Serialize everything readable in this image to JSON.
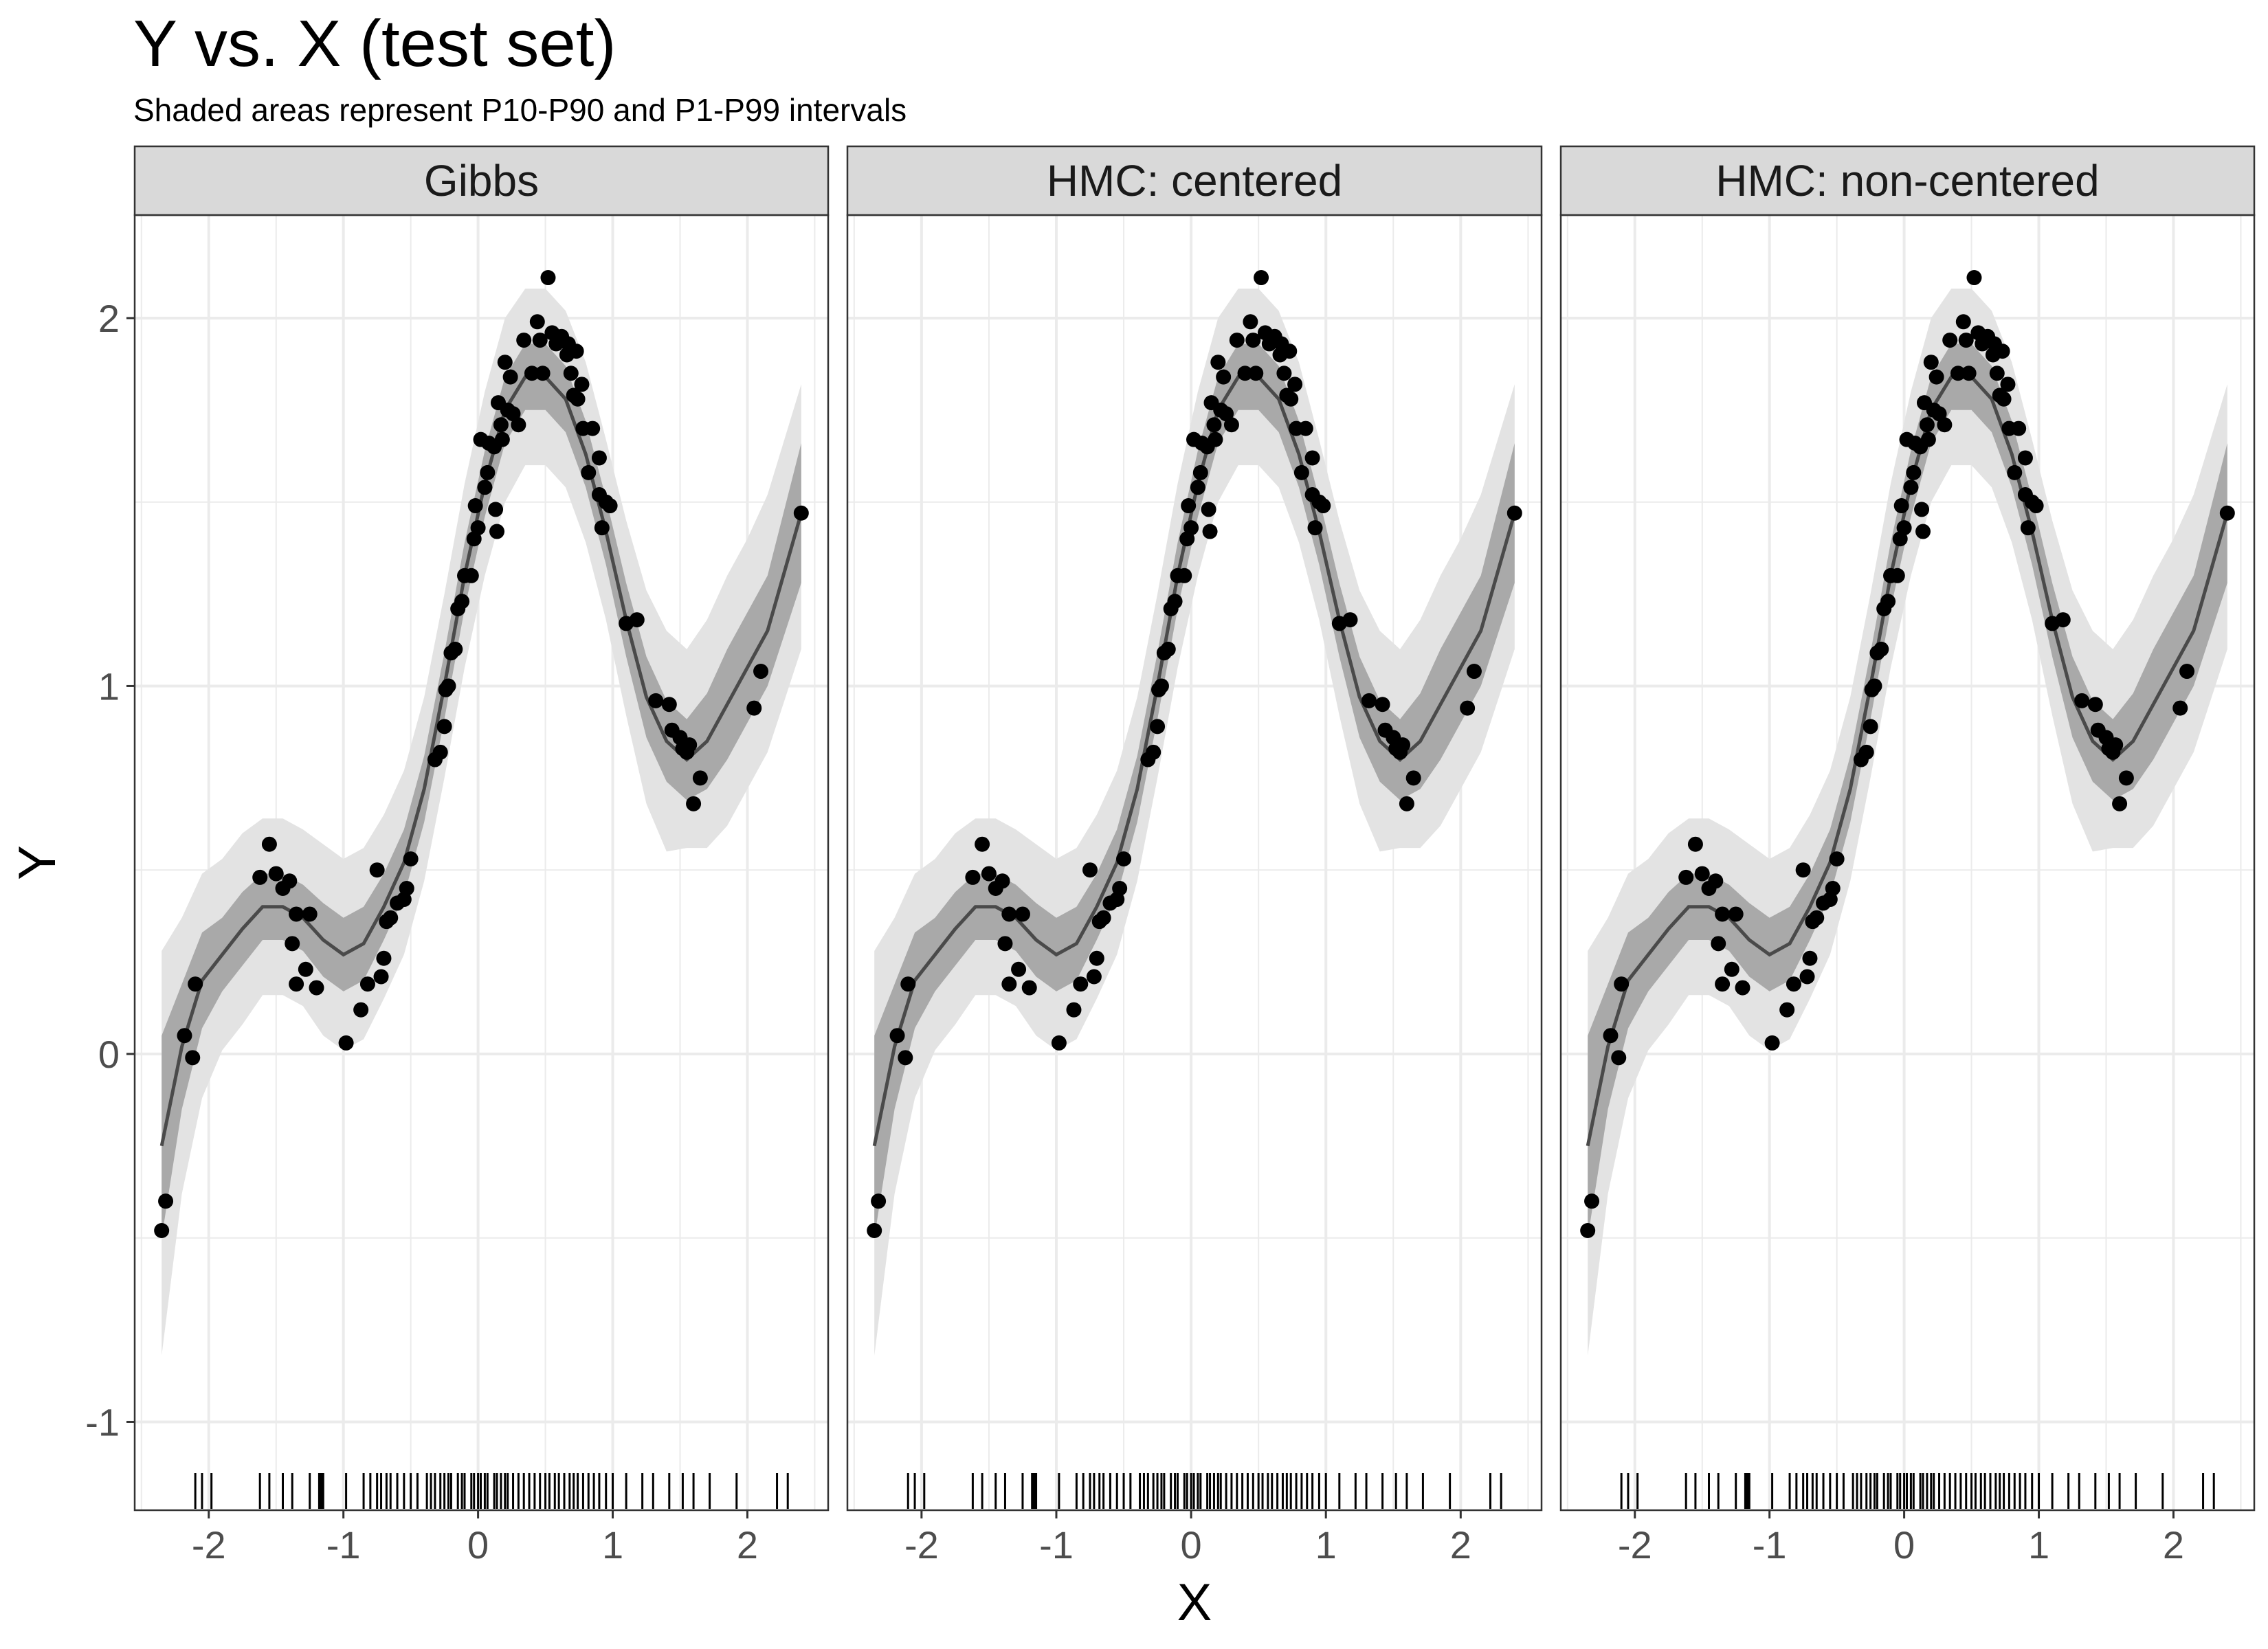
{
  "title": "Y vs. X (test set)",
  "subtitle": "Shaded areas represent P10-P90 and P1-P99 intervals",
  "colors": {
    "outer_band": "#e3e3e3",
    "inner_band": "#a9a9a9",
    "line": "#4a4a4a",
    "points": "#000000",
    "strip": "#d9d9d9",
    "grid": "#ebebeb"
  },
  "chart_data": {
    "type": "scatter",
    "facets": [
      "Gibbs",
      "HMC: centered",
      "HMC: non-centered"
    ],
    "xlabel": "X",
    "ylabel": "Y",
    "xlim": [
      -2.55,
      2.6
    ],
    "ylim": [
      -1.24,
      2.28
    ],
    "x_ticks": [
      -2,
      -1,
      0,
      1,
      2
    ],
    "y_ticks": [
      -1,
      0,
      1,
      2
    ],
    "grid": true,
    "points": [
      [
        -2.35,
        -0.48
      ],
      [
        -2.32,
        -0.4
      ],
      [
        -2.18,
        0.05
      ],
      [
        -2.12,
        -0.01
      ],
      [
        -2.1,
        0.19
      ],
      [
        -1.62,
        0.48
      ],
      [
        -1.55,
        0.57
      ],
      [
        -1.5,
        0.49
      ],
      [
        -1.45,
        0.45
      ],
      [
        -1.4,
        0.47
      ],
      [
        -1.38,
        0.3
      ],
      [
        -1.35,
        0.19
      ],
      [
        -1.35,
        0.38
      ],
      [
        -1.28,
        0.23
      ],
      [
        -1.25,
        0.38
      ],
      [
        -1.2,
        0.18
      ],
      [
        -0.98,
        0.03
      ],
      [
        -0.87,
        0.12
      ],
      [
        -0.82,
        0.19
      ],
      [
        -0.75,
        0.5
      ],
      [
        -0.72,
        0.21
      ],
      [
        -0.7,
        0.26
      ],
      [
        -0.68,
        0.36
      ],
      [
        -0.65,
        0.37
      ],
      [
        -0.6,
        0.41
      ],
      [
        -0.55,
        0.42
      ],
      [
        -0.53,
        0.45
      ],
      [
        -0.5,
        0.53
      ],
      [
        -0.32,
        0.8
      ],
      [
        -0.28,
        0.82
      ],
      [
        -0.25,
        0.89
      ],
      [
        -0.24,
        0.99
      ],
      [
        -0.22,
        1.0
      ],
      [
        -0.2,
        1.09
      ],
      [
        -0.17,
        1.1
      ],
      [
        -0.15,
        1.21
      ],
      [
        -0.12,
        1.23
      ],
      [
        -0.1,
        1.3
      ],
      [
        -0.05,
        1.3
      ],
      [
        -0.03,
        1.4
      ],
      [
        -0.02,
        1.49
      ],
      [
        0.0,
        1.43
      ],
      [
        0.02,
        1.67
      ],
      [
        0.05,
        1.54
      ],
      [
        0.07,
        1.58
      ],
      [
        0.08,
        1.66
      ],
      [
        0.12,
        1.65
      ],
      [
        0.13,
        1.48
      ],
      [
        0.14,
        1.42
      ],
      [
        0.15,
        1.77
      ],
      [
        0.17,
        1.71
      ],
      [
        0.18,
        1.67
      ],
      [
        0.2,
        1.88
      ],
      [
        0.22,
        1.75
      ],
      [
        0.24,
        1.84
      ],
      [
        0.26,
        1.74
      ],
      [
        0.3,
        1.71
      ],
      [
        0.34,
        1.94
      ],
      [
        0.4,
        1.85
      ],
      [
        0.44,
        1.99
      ],
      [
        0.46,
        1.94
      ],
      [
        0.48,
        1.85
      ],
      [
        0.52,
        2.11
      ],
      [
        0.55,
        1.96
      ],
      [
        0.58,
        1.93
      ],
      [
        0.62,
        1.95
      ],
      [
        0.66,
        1.9
      ],
      [
        0.67,
        1.93
      ],
      [
        0.69,
        1.85
      ],
      [
        0.71,
        1.79
      ],
      [
        0.73,
        1.91
      ],
      [
        0.74,
        1.78
      ],
      [
        0.77,
        1.82
      ],
      [
        0.78,
        1.7
      ],
      [
        0.82,
        1.58
      ],
      [
        0.85,
        1.7
      ],
      [
        0.9,
        1.62
      ],
      [
        0.9,
        1.52
      ],
      [
        0.92,
        1.43
      ],
      [
        0.95,
        1.5
      ],
      [
        0.98,
        1.49
      ],
      [
        1.1,
        1.17
      ],
      [
        1.18,
        1.18
      ],
      [
        1.32,
        0.96
      ],
      [
        1.42,
        0.95
      ],
      [
        1.44,
        0.88
      ],
      [
        1.5,
        0.86
      ],
      [
        1.52,
        0.83
      ],
      [
        1.55,
        0.82
      ],
      [
        1.57,
        0.84
      ],
      [
        1.6,
        0.68
      ],
      [
        1.65,
        0.75
      ],
      [
        2.05,
        0.94
      ],
      [
        2.1,
        1.04
      ],
      [
        2.4,
        1.47
      ]
    ],
    "fit_x": [
      -2.35,
      -2.2,
      -2.05,
      -1.9,
      -1.75,
      -1.6,
      -1.45,
      -1.3,
      -1.15,
      -1.0,
      -0.85,
      -0.7,
      -0.55,
      -0.4,
      -0.25,
      -0.1,
      0.05,
      0.2,
      0.35,
      0.5,
      0.65,
      0.8,
      0.95,
      1.1,
      1.25,
      1.4,
      1.55,
      1.7,
      1.85,
      2.0,
      2.15,
      2.4
    ],
    "fit_y": [
      -0.25,
      0.02,
      0.2,
      0.27,
      0.34,
      0.4,
      0.4,
      0.37,
      0.31,
      0.27,
      0.3,
      0.4,
      0.52,
      0.72,
      1.0,
      1.3,
      1.55,
      1.75,
      1.84,
      1.84,
      1.78,
      1.63,
      1.42,
      1.18,
      0.97,
      0.85,
      0.8,
      0.85,
      0.95,
      1.05,
      1.15,
      1.47
    ],
    "p10": [
      -0.5,
      -0.15,
      0.07,
      0.17,
      0.24,
      0.31,
      0.31,
      0.28,
      0.21,
      0.17,
      0.2,
      0.31,
      0.43,
      0.63,
      0.91,
      1.21,
      1.46,
      1.66,
      1.75,
      1.75,
      1.69,
      1.54,
      1.33,
      1.08,
      0.86,
      0.74,
      0.69,
      0.72,
      0.8,
      0.9,
      1.0,
      1.28
    ],
    "p90": [
      0.05,
      0.19,
      0.33,
      0.37,
      0.44,
      0.49,
      0.49,
      0.46,
      0.41,
      0.37,
      0.4,
      0.49,
      0.61,
      0.81,
      1.09,
      1.39,
      1.64,
      1.84,
      1.93,
      1.93,
      1.87,
      1.72,
      1.51,
      1.28,
      1.08,
      0.96,
      0.91,
      0.98,
      1.1,
      1.2,
      1.3,
      1.66
    ],
    "p1": [
      -0.82,
      -0.38,
      -0.12,
      0.01,
      0.08,
      0.16,
      0.16,
      0.13,
      0.05,
      0.01,
      0.04,
      0.15,
      0.27,
      0.47,
      0.75,
      1.05,
      1.3,
      1.5,
      1.6,
      1.6,
      1.54,
      1.39,
      1.18,
      0.92,
      0.68,
      0.55,
      0.56,
      0.56,
      0.62,
      0.72,
      0.82,
      1.1
    ],
    "p99": [
      0.28,
      0.37,
      0.49,
      0.53,
      0.6,
      0.64,
      0.64,
      0.61,
      0.57,
      0.53,
      0.56,
      0.65,
      0.77,
      0.97,
      1.25,
      1.55,
      1.8,
      2.0,
      2.08,
      2.08,
      2.02,
      1.88,
      1.67,
      1.45,
      1.26,
      1.15,
      1.1,
      1.18,
      1.3,
      1.4,
      1.52,
      1.82
    ],
    "rug_x": [
      -2.1,
      -2.05,
      -1.98,
      -1.62,
      -1.55,
      -1.45,
      -1.38,
      -1.25,
      -1.18,
      -1.17,
      -1.16,
      -1.15,
      -0.98,
      -0.85,
      -0.8,
      -0.75,
      -0.72,
      -0.68,
      -0.65,
      -0.6,
      -0.55,
      -0.5,
      -0.45,
      -0.38,
      -0.35,
      -0.32,
      -0.28,
      -0.25,
      -0.22,
      -0.2,
      -0.15,
      -0.12,
      -0.1,
      -0.05,
      -0.03,
      0.0,
      0.02,
      0.05,
      0.07,
      0.12,
      0.14,
      0.17,
      0.2,
      0.22,
      0.26,
      0.3,
      0.34,
      0.38,
      0.42,
      0.46,
      0.5,
      0.53,
      0.57,
      0.6,
      0.64,
      0.68,
      0.71,
      0.74,
      0.78,
      0.82,
      0.86,
      0.9,
      0.95,
      1.0,
      1.1,
      1.22,
      1.3,
      1.42,
      1.52,
      1.6,
      1.72,
      1.92,
      2.22,
      2.3
    ]
  }
}
